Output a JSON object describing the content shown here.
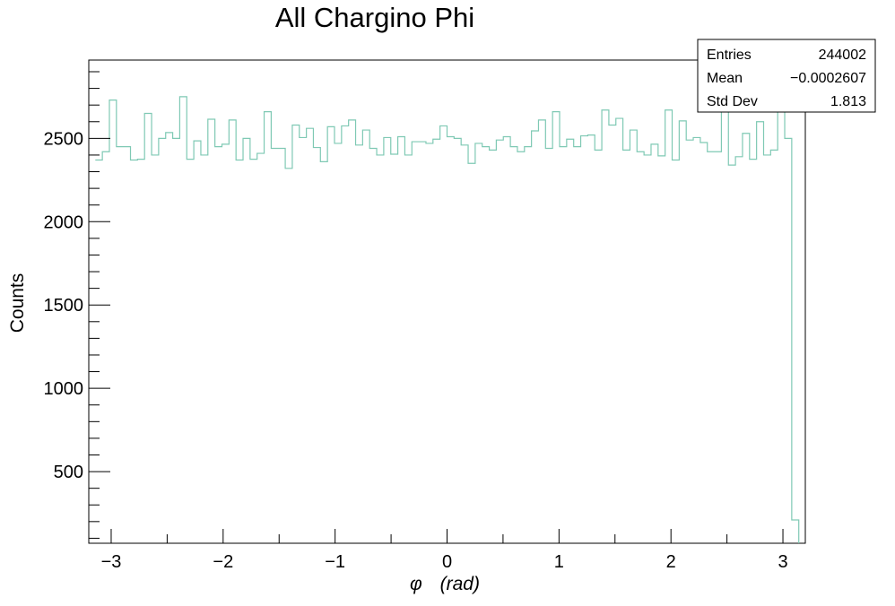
{
  "chart_data": {
    "type": "histogram",
    "title": "All Chargino Phi",
    "xlabel_symbol": "φ",
    "xlabel_unit": "(rad)",
    "ylabel": "Counts",
    "xlim": [
      -3.2,
      3.2
    ],
    "ylim": [
      70,
      2970
    ],
    "x_ticks": [
      -3,
      -2,
      -1,
      0,
      1,
      2,
      3
    ],
    "x_tick_labels": [
      "−3",
      "−2",
      "−1",
      "0",
      "1",
      "2",
      "3"
    ],
    "y_ticks": [
      500,
      1000,
      1500,
      2000,
      2500
    ],
    "y_tick_labels": [
      "500",
      "1000",
      "1500",
      "2000",
      "2500"
    ],
    "bin_edges_range": [
      -3.1416,
      3.1416
    ],
    "n_bins": 100,
    "line_color": "#7fc9b4",
    "values": [
      2370,
      2420,
      2730,
      2450,
      2450,
      2370,
      2375,
      2650,
      2400,
      2500,
      2535,
      2500,
      2750,
      2375,
      2485,
      2400,
      2615,
      2450,
      2465,
      2610,
      2370,
      2500,
      2375,
      2410,
      2660,
      2440,
      2440,
      2320,
      2580,
      2505,
      2560,
      2445,
      2360,
      2570,
      2470,
      2575,
      2610,
      2460,
      2550,
      2440,
      2400,
      2505,
      2405,
      2510,
      2400,
      2480,
      2480,
      2470,
      2495,
      2575,
      2510,
      2500,
      2460,
      2350,
      2470,
      2450,
      2430,
      2490,
      2510,
      2450,
      2420,
      2450,
      2545,
      2610,
      2440,
      2660,
      2450,
      2495,
      2450,
      2515,
      2520,
      2430,
      2670,
      2580,
      2620,
      2430,
      2550,
      2420,
      2400,
      2465,
      2395,
      2670,
      2370,
      2605,
      2490,
      2505,
      2475,
      2420,
      2420,
      2770,
      2340,
      2390,
      2530,
      2375,
      2600,
      2400,
      2430,
      2700,
      2500,
      2420
    ],
    "last_bin_value": 210,
    "stats": {
      "entries_label": "Entries",
      "entries_value": "244002",
      "mean_label": "Mean",
      "mean_value": "−0.0002607",
      "stddev_label": "Std Dev",
      "stddev_value": "1.813"
    }
  }
}
